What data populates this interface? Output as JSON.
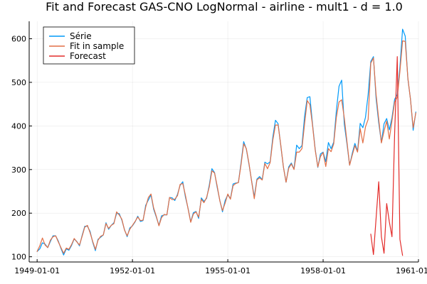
{
  "chart_data": {
    "type": "line",
    "title": "Fit and Forecast GAS-CNO LogNormal - airline - mult1 - d = 1.0",
    "xlabel": "",
    "ylabel": "",
    "x_start": "1949-01",
    "x_step": "month",
    "xlim": [
      "1948-10-01",
      "1961-01-01"
    ],
    "ylim": [
      88,
      640
    ],
    "x_ticks": [
      "1949-01-01",
      "1952-01-01",
      "1955-01-01",
      "1958-01-01",
      "1961-01-01"
    ],
    "y_ticks": [
      100,
      200,
      300,
      400,
      500,
      600
    ],
    "grid": true,
    "legend_position": "top-left",
    "series": [
      {
        "name": "Série",
        "color": "#009af9",
        "x_start": "1949-01",
        "values": [
          112,
          118,
          132,
          129,
          121,
          135,
          148,
          148,
          136,
          119,
          104,
          118,
          115,
          126,
          141,
          135,
          125,
          149,
          170,
          170,
          158,
          133,
          114,
          140,
          145,
          150,
          178,
          163,
          172,
          178,
          199,
          199,
          184,
          162,
          146,
          166,
          171,
          180,
          193,
          181,
          183,
          218,
          230,
          242,
          209,
          191,
          172,
          194,
          196,
          196,
          236,
          235,
          229,
          243,
          264,
          272,
          237,
          211,
          180,
          201,
          204,
          188,
          235,
          227,
          234,
          264,
          302,
          293,
          259,
          229,
          203,
          229,
          242,
          233,
          267,
          269,
          270,
          315,
          364,
          347,
          312,
          274,
          237,
          278,
          284,
          277,
          317,
          313,
          318,
          374,
          413,
          405,
          355,
          306,
          271,
          306,
          315,
          301,
          356,
          348,
          355,
          422,
          465,
          467,
          404,
          347,
          305,
          336,
          340,
          318,
          362,
          348,
          363,
          435,
          491,
          505,
          404,
          359,
          310,
          337,
          360,
          342,
          406,
          396,
          420,
          472,
          548,
          559,
          463,
          407,
          362,
          405,
          417,
          391,
          419,
          461,
          472,
          535,
          622,
          606,
          508,
          461,
          390,
          432
        ]
      },
      {
        "name": "Fit in sample",
        "color": "#e26f46",
        "x_start": "1949-01",
        "values": [
          112,
          125,
          143,
          127,
          121,
          138,
          146,
          148,
          134,
          121,
          108,
          120,
          117,
          128,
          142,
          134,
          127,
          147,
          168,
          172,
          155,
          135,
          117,
          138,
          147,
          150,
          176,
          165,
          172,
          176,
          203,
          196,
          186,
          161,
          148,
          163,
          172,
          181,
          191,
          183,
          184,
          214,
          236,
          244,
          212,
          193,
          171,
          190,
          197,
          196,
          236,
          231,
          232,
          240,
          266,
          268,
          241,
          210,
          179,
          198,
          203,
          191,
          232,
          224,
          236,
          260,
          297,
          292,
          262,
          228,
          206,
          223,
          244,
          232,
          263,
          268,
          270,
          311,
          359,
          348,
          314,
          273,
          233,
          276,
          281,
          276,
          314,
          302,
          316,
          367,
          402,
          402,
          357,
          306,
          271,
          303,
          313,
          300,
          340,
          340,
          348,
          405,
          458,
          449,
          401,
          345,
          306,
          330,
          339,
          307,
          348,
          341,
          359,
          420,
          455,
          460,
          418,
          364,
          310,
          333,
          355,
          340,
          394,
          361,
          398,
          415,
          544,
          556,
          472,
          415,
          361,
          388,
          411,
          370,
          412,
          455,
          466,
          525,
          595,
          594,
          510,
          460,
          396,
          430
        ]
      },
      {
        "name": "Forecast",
        "color": "#e32c2a",
        "x_start": "1959-07",
        "values": [
          152,
          105,
          188,
          272,
          146,
          108,
          222,
          180,
          146,
          382,
          559,
          140,
          103
        ]
      }
    ]
  }
}
